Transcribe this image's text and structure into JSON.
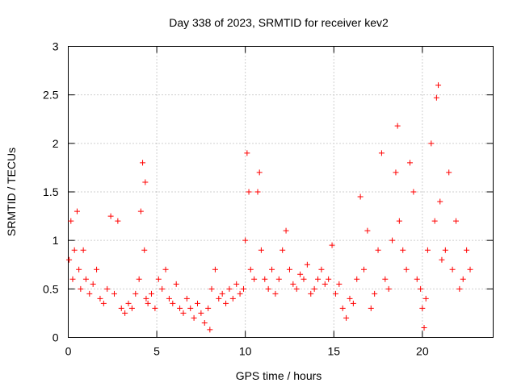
{
  "chart_data": {
    "type": "scatter",
    "title": "Day 338 of 2023, SRMTID for receiver kev2",
    "xlabel": "GPS time / hours",
    "ylabel": "SRMTID / TECUs",
    "xlim": [
      0,
      24
    ],
    "ylim": [
      0,
      3
    ],
    "xticks": [
      0,
      5,
      10,
      15,
      20
    ],
    "xtick_labels": [
      "0",
      "5",
      "10",
      "15",
      "20"
    ],
    "yticks": [
      0,
      0.5,
      1,
      1.5,
      2,
      2.5,
      3
    ],
    "ytick_labels": [
      "0",
      "0.5",
      "1",
      "1.5",
      "2",
      "2.5",
      "3"
    ],
    "grid": true,
    "marker": "+",
    "series": [
      {
        "name": "kev2",
        "color": "#ff0000",
        "x": [
          0.05,
          0.15,
          0.25,
          0.35,
          0.5,
          0.6,
          0.7,
          0.85,
          1.0,
          1.2,
          1.4,
          1.6,
          1.8,
          2.0,
          2.2,
          2.4,
          2.6,
          2.8,
          3.0,
          3.2,
          3.4,
          3.6,
          3.8,
          4.0,
          4.1,
          4.2,
          4.3,
          4.35,
          4.4,
          4.5,
          4.7,
          4.9,
          5.1,
          5.3,
          5.5,
          5.7,
          5.9,
          6.1,
          6.3,
          6.5,
          6.7,
          6.9,
          7.1,
          7.3,
          7.5,
          7.7,
          7.9,
          8.0,
          8.1,
          8.3,
          8.5,
          8.7,
          8.9,
          9.1,
          9.3,
          9.5,
          9.7,
          9.9,
          10.0,
          10.1,
          10.2,
          10.3,
          10.5,
          10.7,
          10.8,
          10.9,
          11.1,
          11.3,
          11.5,
          11.7,
          11.9,
          12.1,
          12.3,
          12.5,
          12.7,
          12.9,
          13.1,
          13.3,
          13.5,
          13.7,
          13.9,
          14.1,
          14.3,
          14.5,
          14.7,
          14.9,
          15.1,
          15.3,
          15.5,
          15.7,
          15.9,
          16.1,
          16.3,
          16.5,
          16.7,
          16.9,
          17.1,
          17.3,
          17.5,
          17.7,
          17.9,
          18.1,
          18.3,
          18.5,
          18.6,
          18.7,
          18.9,
          19.1,
          19.3,
          19.5,
          19.7,
          19.9,
          20.0,
          20.1,
          20.2,
          20.3,
          20.5,
          20.7,
          20.8,
          20.9,
          21.0,
          21.1,
          21.3,
          21.5,
          21.7,
          21.9,
          22.1,
          22.3,
          22.5,
          22.7
        ],
        "y": [
          0.8,
          1.2,
          0.6,
          0.9,
          1.3,
          0.7,
          0.5,
          0.9,
          0.6,
          0.45,
          0.55,
          0.7,
          0.4,
          0.35,
          0.5,
          1.25,
          0.45,
          1.2,
          0.3,
          0.25,
          0.35,
          0.3,
          0.45,
          0.6,
          1.3,
          1.8,
          0.9,
          1.6,
          0.4,
          0.35,
          0.45,
          0.3,
          0.6,
          0.5,
          0.7,
          0.4,
          0.35,
          0.55,
          0.3,
          0.25,
          0.4,
          0.3,
          0.2,
          0.35,
          0.25,
          0.15,
          0.3,
          0.08,
          0.5,
          0.7,
          0.4,
          0.45,
          0.35,
          0.5,
          0.4,
          0.55,
          0.45,
          0.5,
          1.0,
          1.9,
          1.5,
          0.7,
          0.6,
          1.5,
          1.7,
          0.9,
          0.6,
          0.5,
          0.7,
          0.45,
          0.6,
          0.9,
          1.1,
          0.7,
          0.55,
          0.5,
          0.65,
          0.6,
          0.75,
          0.45,
          0.5,
          0.6,
          0.7,
          0.55,
          0.6,
          0.95,
          0.45,
          0.55,
          0.3,
          0.2,
          0.4,
          0.35,
          0.6,
          1.45,
          0.7,
          1.1,
          0.3,
          0.45,
          0.9,
          1.9,
          0.6,
          0.5,
          1.0,
          1.7,
          2.18,
          1.2,
          0.9,
          0.7,
          1.8,
          1.5,
          0.6,
          0.5,
          0.3,
          0.1,
          0.4,
          0.9,
          2.0,
          1.2,
          2.47,
          2.6,
          1.4,
          0.8,
          0.9,
          1.7,
          0.7,
          1.2,
          0.5,
          0.6,
          0.9,
          0.7
        ]
      }
    ]
  }
}
